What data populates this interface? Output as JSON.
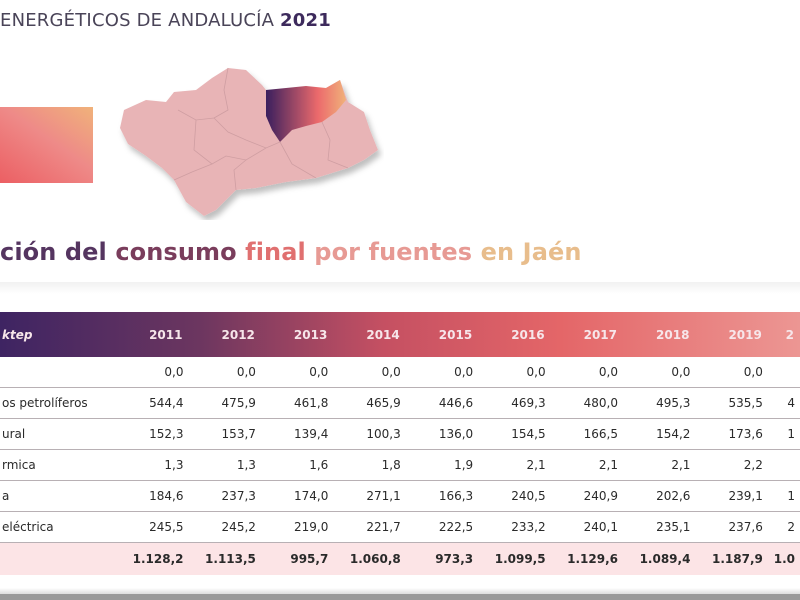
{
  "header": {
    "title_prefix": "ENERGÉTICOS DE ANDALUCÍA",
    "title_year": "2021"
  },
  "map": {
    "region": "Andalucía",
    "highlighted_province": "Jaén",
    "highlight_colors": [
      "#3a1f5e",
      "#ec6a6c",
      "#f0b27a"
    ],
    "base_color": "#e8b4b6"
  },
  "subtitle": {
    "part1": "ción del ",
    "part2": "consumo ",
    "part3": "final ",
    "part4": "por fuentes ",
    "part5": "en Jaén"
  },
  "table": {
    "unit_label": "ktep",
    "years": [
      "2011",
      "2012",
      "2013",
      "2014",
      "2015",
      "2016",
      "2017",
      "2018",
      "2019",
      "2"
    ],
    "rows": [
      {
        "label": "",
        "values": [
          "0,0",
          "0,0",
          "0,0",
          "0,0",
          "0,0",
          "0,0",
          "0,0",
          "0,0",
          "0,0",
          ""
        ]
      },
      {
        "label": "os petrolíferos",
        "values": [
          "544,4",
          "475,9",
          "461,8",
          "465,9",
          "446,6",
          "469,3",
          "480,0",
          "495,3",
          "535,5",
          "4"
        ]
      },
      {
        "label": "ural",
        "values": [
          "152,3",
          "153,7",
          "139,4",
          "100,3",
          "136,0",
          "154,5",
          "166,5",
          "154,2",
          "173,6",
          "1"
        ]
      },
      {
        "label": "rmica",
        "values": [
          "1,3",
          "1,3",
          "1,6",
          "1,8",
          "1,9",
          "2,1",
          "2,1",
          "2,1",
          "2,2",
          ""
        ]
      },
      {
        "label": "a",
        "values": [
          "184,6",
          "237,3",
          "174,0",
          "271,1",
          "166,3",
          "240,5",
          "240,9",
          "202,6",
          "239,1",
          "1"
        ]
      },
      {
        "label": "eléctrica",
        "values": [
          "245,5",
          "245,2",
          "219,0",
          "221,7",
          "222,5",
          "233,2",
          "240,1",
          "235,1",
          "237,6",
          "2"
        ]
      }
    ],
    "total": {
      "label": "",
      "values": [
        "1.128,2",
        "1.113,5",
        "995,7",
        "1.060,8",
        "973,3",
        "1.099,5",
        "1.129,6",
        "1.089,4",
        "1.187,9",
        "1.0"
      ]
    }
  }
}
